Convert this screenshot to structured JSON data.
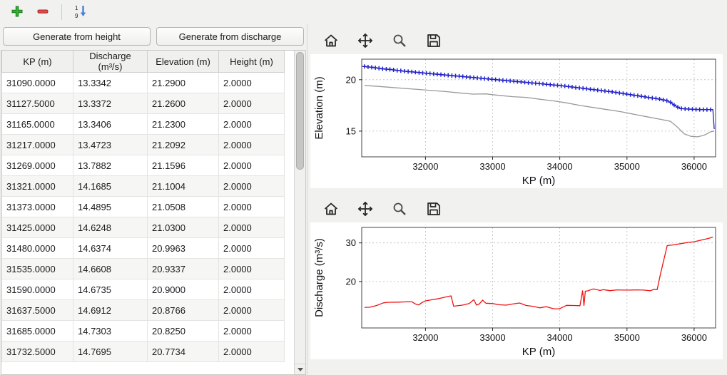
{
  "main_toolbar": {
    "icons": [
      "add-icon",
      "remove-icon",
      "sort-numeric-icon"
    ]
  },
  "buttons": {
    "generate_from_height": "Generate from height",
    "generate_from_discharge": "Generate from discharge"
  },
  "table": {
    "columns": [
      "KP (m)",
      "Discharge (m³/s)",
      "Elevation (m)",
      "Height (m)"
    ],
    "rows": [
      [
        "31090.0000",
        "13.3342",
        "21.2900",
        "2.0000"
      ],
      [
        "31127.5000",
        "13.3372",
        "21.2600",
        "2.0000"
      ],
      [
        "31165.0000",
        "13.3406",
        "21.2300",
        "2.0000"
      ],
      [
        "31217.0000",
        "13.4723",
        "21.2092",
        "2.0000"
      ],
      [
        "31269.0000",
        "13.7882",
        "21.1596",
        "2.0000"
      ],
      [
        "31321.0000",
        "14.1685",
        "21.1004",
        "2.0000"
      ],
      [
        "31373.0000",
        "14.4895",
        "21.0508",
        "2.0000"
      ],
      [
        "31425.0000",
        "14.6248",
        "21.0300",
        "2.0000"
      ],
      [
        "31480.0000",
        "14.6374",
        "20.9963",
        "2.0000"
      ],
      [
        "31535.0000",
        "14.6608",
        "20.9337",
        "2.0000"
      ],
      [
        "31590.0000",
        "14.6735",
        "20.9000",
        "2.0000"
      ],
      [
        "31637.5000",
        "14.6912",
        "20.8766",
        "2.0000"
      ],
      [
        "31685.0000",
        "14.7303",
        "20.8250",
        "2.0000"
      ],
      [
        "31732.5000",
        "14.7695",
        "20.7734",
        "2.0000"
      ]
    ]
  },
  "chart_toolbar": {
    "icons": [
      "home-icon",
      "pan-icon",
      "zoom-icon",
      "save-icon"
    ]
  },
  "colors": {
    "elevation_line": "#2222cc",
    "bed_line": "#999999",
    "discharge_line": "#ee1111",
    "grid": "#bbbbbb"
  },
  "chart_data": [
    {
      "type": "line",
      "title": "",
      "xlabel": "KP (m)",
      "ylabel": "Elevation (m)",
      "xlim": [
        31050,
        36320
      ],
      "ylim": [
        12.5,
        22.0
      ],
      "xticks": [
        32000,
        33000,
        34000,
        35000,
        36000
      ],
      "yticks": [
        15,
        20
      ],
      "grid": true,
      "legend": "none",
      "series": [
        {
          "name": "elevation",
          "color": "#2222cc",
          "marker": "plus",
          "x": [
            31090,
            31165,
            31269,
            31373,
            31480,
            31590,
            31685,
            31800,
            31900,
            32000,
            32100,
            32200,
            32300,
            32400,
            32500,
            32600,
            32700,
            32800,
            32900,
            33000,
            33100,
            33200,
            33300,
            33400,
            33500,
            33600,
            33700,
            33800,
            33900,
            34000,
            34100,
            34200,
            34300,
            34400,
            34500,
            34600,
            34700,
            34800,
            34900,
            35000,
            35100,
            35200,
            35300,
            35400,
            35500,
            35600,
            35650,
            35700,
            35750,
            35800,
            35900,
            36000,
            36100,
            36200,
            36280,
            36300
          ],
          "y": [
            21.29,
            21.23,
            21.16,
            21.05,
            21.0,
            20.9,
            20.83,
            20.76,
            20.7,
            20.64,
            20.58,
            20.52,
            20.46,
            20.4,
            20.34,
            20.28,
            20.22,
            20.16,
            20.1,
            20.04,
            19.98,
            19.92,
            19.86,
            19.8,
            19.74,
            19.68,
            19.62,
            19.56,
            19.5,
            19.44,
            19.36,
            19.28,
            19.2,
            19.12,
            19.04,
            18.96,
            18.88,
            18.8,
            18.7,
            18.6,
            18.5,
            18.4,
            18.3,
            18.2,
            18.1,
            17.95,
            17.8,
            17.55,
            17.35,
            17.2,
            17.15,
            17.12,
            17.1,
            17.1,
            17.1,
            15.2
          ]
        },
        {
          "name": "bed",
          "color": "#999999",
          "marker": "none",
          "x": [
            31090,
            31300,
            31500,
            31700,
            31900,
            32100,
            32300,
            32500,
            32700,
            32900,
            33000,
            33100,
            33300,
            33500,
            33700,
            33900,
            34100,
            34300,
            34500,
            34700,
            34900,
            35100,
            35300,
            35500,
            35650,
            35750,
            35850,
            35950,
            36050,
            36150,
            36250,
            36300
          ],
          "y": [
            19.45,
            19.35,
            19.25,
            19.15,
            19.05,
            18.95,
            18.85,
            18.72,
            18.6,
            18.62,
            18.55,
            18.48,
            18.35,
            18.28,
            18.1,
            17.95,
            17.75,
            17.5,
            17.3,
            17.1,
            16.9,
            16.65,
            16.4,
            16.15,
            15.95,
            15.4,
            14.75,
            14.5,
            14.45,
            14.6,
            14.95,
            15.0
          ]
        }
      ]
    },
    {
      "type": "line",
      "title": "",
      "xlabel": "KP (m)",
      "ylabel": "Discharge (m³/s)",
      "xlim": [
        31050,
        36320
      ],
      "ylim": [
        8,
        34
      ],
      "xticks": [
        32000,
        33000,
        34000,
        35000,
        36000
      ],
      "yticks": [
        20,
        30
      ],
      "grid": true,
      "legend": "none",
      "series": [
        {
          "name": "discharge",
          "color": "#ee1111",
          "marker": "none",
          "x": [
            31090,
            31165,
            31269,
            31373,
            31425,
            31480,
            31590,
            31685,
            31732,
            31800,
            31850,
            31900,
            31950,
            32000,
            32100,
            32200,
            32300,
            32380,
            32420,
            32450,
            32550,
            32650,
            32720,
            32760,
            32800,
            32850,
            32900,
            33000,
            33100,
            33200,
            33300,
            33400,
            33500,
            33600,
            33700,
            33800,
            33900,
            33950,
            34000,
            34100,
            34200,
            34300,
            34340,
            34360,
            34380,
            34420,
            34500,
            34600,
            34650,
            34750,
            34850,
            34950,
            35050,
            35150,
            35250,
            35350,
            35400,
            35450,
            35500,
            35600,
            35700,
            35800,
            35900,
            36000,
            36100,
            36200,
            36280
          ],
          "y": [
            13.33,
            13.34,
            13.79,
            14.49,
            14.62,
            14.64,
            14.67,
            14.73,
            14.77,
            14.75,
            14.2,
            13.95,
            14.6,
            15.0,
            15.3,
            15.6,
            16.0,
            16.3,
            13.6,
            13.7,
            13.9,
            14.3,
            15.3,
            13.9,
            14.2,
            15.2,
            14.4,
            14.3,
            14.0,
            13.9,
            14.2,
            14.45,
            13.8,
            13.6,
            13.2,
            13.5,
            13.0,
            12.9,
            13.0,
            13.85,
            13.8,
            13.75,
            17.6,
            13.8,
            17.5,
            17.6,
            18.1,
            17.7,
            17.9,
            17.65,
            17.85,
            17.8,
            17.8,
            17.85,
            17.8,
            17.6,
            18.0,
            17.9,
            22.0,
            29.3,
            29.5,
            29.8,
            30.1,
            30.3,
            30.7,
            31.1,
            31.5
          ]
        }
      ]
    }
  ]
}
